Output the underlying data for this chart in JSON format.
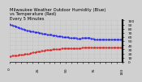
{
  "title": "Milwaukee Weather Outdoor Humidity (Blue)\nvs Temperature (Red)\nEvery 5 Minutes",
  "background_color": "#d0d0d0",
  "plot_bg_color": "#d0d0d0",
  "grid_color": "#b0b0b0",
  "blue_x": [
    0,
    1,
    2,
    3,
    4,
    5,
    6,
    7,
    8,
    9,
    10,
    11,
    12,
    13,
    14,
    15,
    16,
    17,
    18,
    19,
    20,
    21,
    22,
    23,
    24,
    25,
    26,
    27,
    28,
    29,
    30,
    31,
    32,
    33,
    34,
    35,
    36,
    37,
    38,
    39,
    40,
    41,
    42,
    43,
    44,
    45,
    46,
    47,
    48,
    49,
    50,
    51,
    52,
    53,
    54,
    55,
    56,
    57,
    58,
    59,
    60,
    61,
    62,
    63,
    64,
    65,
    66,
    67,
    68,
    69,
    70,
    71,
    72,
    73,
    74,
    75,
    76,
    77,
    78,
    79,
    80,
    81,
    82,
    83,
    84,
    85,
    86,
    87,
    88,
    89,
    90,
    91,
    92,
    93,
    94,
    95,
    96,
    97,
    98,
    99,
    100
  ],
  "blue_y": [
    91,
    90,
    89,
    88,
    87,
    86,
    85,
    84,
    83,
    82,
    81,
    80,
    79,
    78,
    77,
    76,
    75,
    75,
    74,
    74,
    73,
    73,
    72,
    72,
    71,
    71,
    70,
    70,
    69,
    68,
    68,
    67,
    67,
    66,
    66,
    65,
    65,
    65,
    64,
    64,
    63,
    63,
    62,
    62,
    61,
    61,
    61,
    60,
    60,
    60,
    59,
    59,
    59,
    58,
    58,
    58,
    57,
    57,
    57,
    57,
    56,
    56,
    56,
    56,
    57,
    57,
    57,
    58,
    58,
    58,
    57,
    57,
    56,
    56,
    56,
    55,
    55,
    55,
    55,
    54,
    54,
    54,
    54,
    54,
    54,
    54,
    54,
    54,
    54,
    54,
    54,
    54,
    54,
    54,
    54,
    54,
    54,
    54,
    54,
    54,
    54
  ],
  "red_x": [
    0,
    1,
    2,
    3,
    4,
    5,
    6,
    7,
    8,
    9,
    10,
    11,
    12,
    13,
    14,
    15,
    16,
    17,
    18,
    19,
    20,
    21,
    22,
    23,
    24,
    25,
    26,
    27,
    28,
    29,
    30,
    31,
    32,
    33,
    34,
    35,
    36,
    37,
    38,
    39,
    40,
    41,
    42,
    43,
    44,
    45,
    46,
    47,
    48,
    49,
    50,
    51,
    52,
    53,
    54,
    55,
    56,
    57,
    58,
    59,
    60,
    61,
    62,
    63,
    64,
    65,
    66,
    67,
    68,
    69,
    70,
    71,
    72,
    73,
    74,
    75,
    76,
    77,
    78,
    79,
    80,
    81,
    82,
    83,
    84,
    85,
    86,
    87,
    88,
    89,
    90,
    91,
    92,
    93,
    94,
    95,
    96,
    97,
    98,
    99,
    100
  ],
  "red_y": [
    14,
    14,
    15,
    15,
    15,
    16,
    16,
    16,
    17,
    17,
    17,
    18,
    18,
    19,
    19,
    19,
    20,
    20,
    21,
    21,
    22,
    22,
    23,
    23,
    24,
    24,
    25,
    25,
    26,
    26,
    27,
    27,
    28,
    28,
    28,
    29,
    29,
    29,
    30,
    30,
    30,
    30,
    31,
    31,
    31,
    31,
    32,
    32,
    32,
    32,
    32,
    32,
    32,
    32,
    33,
    33,
    33,
    33,
    33,
    33,
    33,
    33,
    33,
    33,
    34,
    34,
    34,
    34,
    34,
    35,
    35,
    35,
    35,
    35,
    35,
    35,
    35,
    35,
    35,
    35,
    35,
    35,
    35,
    35,
    35,
    35,
    35,
    35,
    35,
    35,
    35,
    35,
    35,
    35,
    35,
    35,
    35,
    35,
    35,
    35,
    35
  ],
  "ylim": [
    0,
    100
  ],
  "xlim": [
    0,
    100
  ],
  "ytick_labels": [
    "100",
    "90",
    "80",
    "70",
    "60",
    "50",
    "40",
    "30",
    "20",
    "10",
    "0"
  ],
  "ytick_vals": [
    100,
    90,
    80,
    70,
    60,
    50,
    40,
    30,
    20,
    10,
    0
  ],
  "blue_color": "#0000ee",
  "red_color": "#dd0000",
  "title_fontsize": 3.8,
  "tick_fontsize": 3.2,
  "marker_size": 0.8,
  "line_width": 0.0
}
